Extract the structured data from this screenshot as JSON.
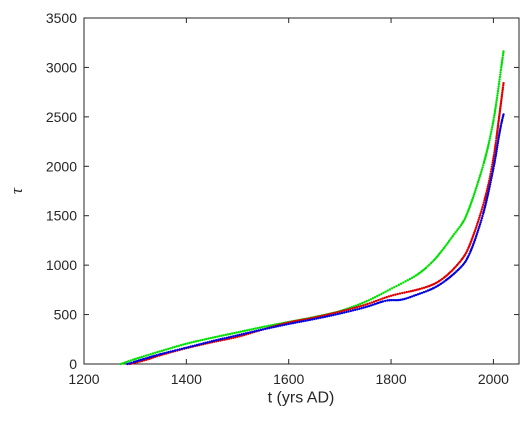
{
  "chart_data": {
    "type": "scatter",
    "title": "",
    "xlabel": "t (yrs AD)",
    "ylabel": "τ",
    "xlim": [
      1200,
      2050
    ],
    "ylim": [
      0,
      3500
    ],
    "xticks": [
      1200,
      1400,
      1600,
      1800,
      2000
    ],
    "yticks": [
      0,
      500,
      1000,
      1500,
      2000,
      2500,
      3000,
      3500
    ],
    "grid": false,
    "legend": false,
    "series": [
      {
        "color": "#00e000",
        "x": [
          1272,
          1300,
          1350,
          1400,
          1450,
          1500,
          1550,
          1600,
          1650,
          1700,
          1750,
          1800,
          1850,
          1880,
          1900,
          1920,
          1940,
          1950,
          1960,
          1970,
          1980,
          1990,
          2000,
          2005,
          2010,
          2015,
          2020
        ],
        "y": [
          0,
          50,
          130,
          205,
          265,
          320,
          375,
          425,
          475,
          535,
          630,
          760,
          900,
          1030,
          1150,
          1290,
          1430,
          1540,
          1680,
          1840,
          2010,
          2210,
          2460,
          2620,
          2800,
          2990,
          3170
        ]
      },
      {
        "color": "#e00000",
        "x": [
          1290,
          1320,
          1350,
          1400,
          1450,
          1500,
          1550,
          1600,
          1650,
          1700,
          1750,
          1800,
          1850,
          1880,
          1900,
          1920,
          1940,
          1950,
          1960,
          1970,
          1980,
          1990,
          2000,
          2005,
          2010,
          2015,
          2020
        ],
        "y": [
          0,
          40,
          90,
          160,
          220,
          275,
          350,
          420,
          470,
          530,
          600,
          690,
          750,
          800,
          860,
          950,
          1070,
          1160,
          1290,
          1440,
          1610,
          1810,
          2080,
          2250,
          2450,
          2650,
          2850
        ]
      },
      {
        "color": "#0000e0",
        "x": [
          1285,
          1320,
          1350,
          1400,
          1450,
          1500,
          1550,
          1600,
          1650,
          1700,
          1750,
          1790,
          1820,
          1850,
          1880,
          1900,
          1920,
          1940,
          1950,
          1960,
          1970,
          1980,
          1990,
          2000,
          2005,
          2010,
          2015,
          2020
        ],
        "y": [
          0,
          55,
          100,
          165,
          230,
          290,
          350,
          405,
          455,
          510,
          575,
          640,
          650,
          700,
          760,
          820,
          900,
          1000,
          1080,
          1200,
          1350,
          1520,
          1730,
          1980,
          2120,
          2280,
          2420,
          2530
        ]
      }
    ]
  }
}
